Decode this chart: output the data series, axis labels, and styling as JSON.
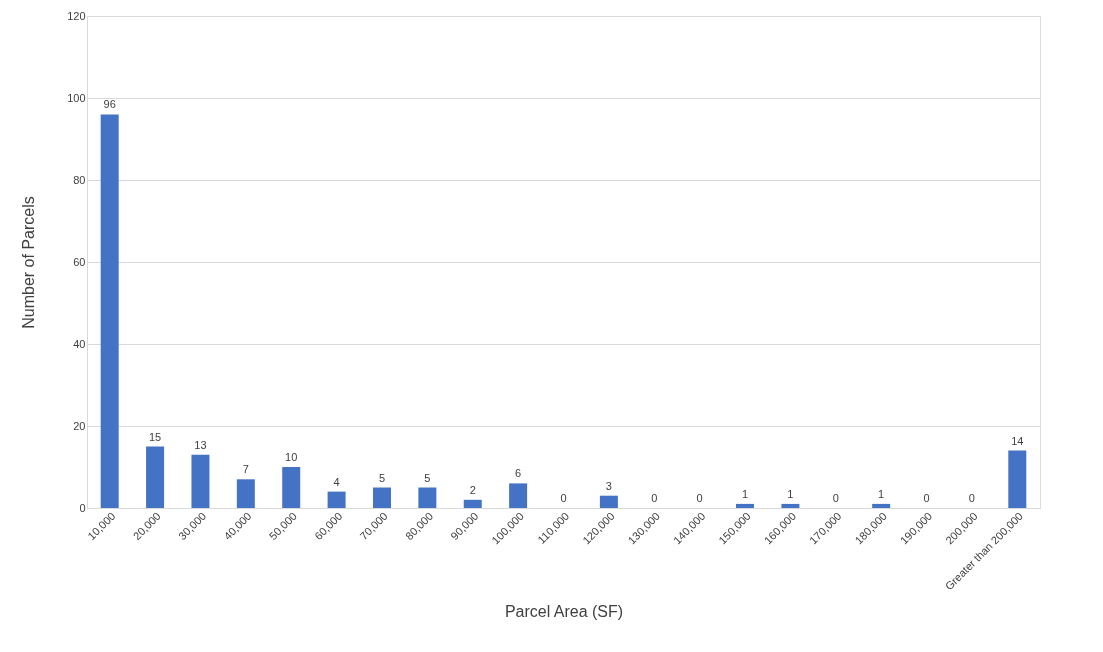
{
  "chart_data": {
    "type": "bar",
    "categories": [
      "10,000",
      "20,000",
      "30,000",
      "40,000",
      "50,000",
      "60,000",
      "70,000",
      "80,000",
      "90,000",
      "100,000",
      "110,000",
      "120,000",
      "130,000",
      "140,000",
      "150,000",
      "160,000",
      "170,000",
      "180,000",
      "190,000",
      "200,000",
      "Greater than 200,000"
    ],
    "values": [
      96,
      15,
      13,
      7,
      10,
      4,
      5,
      5,
      2,
      6,
      0,
      3,
      0,
      0,
      1,
      1,
      0,
      1,
      0,
      0,
      14
    ],
    "color": "#4472c4",
    "xlabel": "Parcel Area (SF)",
    "ylabel": "Number of Parcels",
    "ylim": [
      0,
      120
    ],
    "yticks": [
      0,
      20,
      40,
      60,
      80,
      100,
      120
    ],
    "grid": "y",
    "data_labels": true
  }
}
